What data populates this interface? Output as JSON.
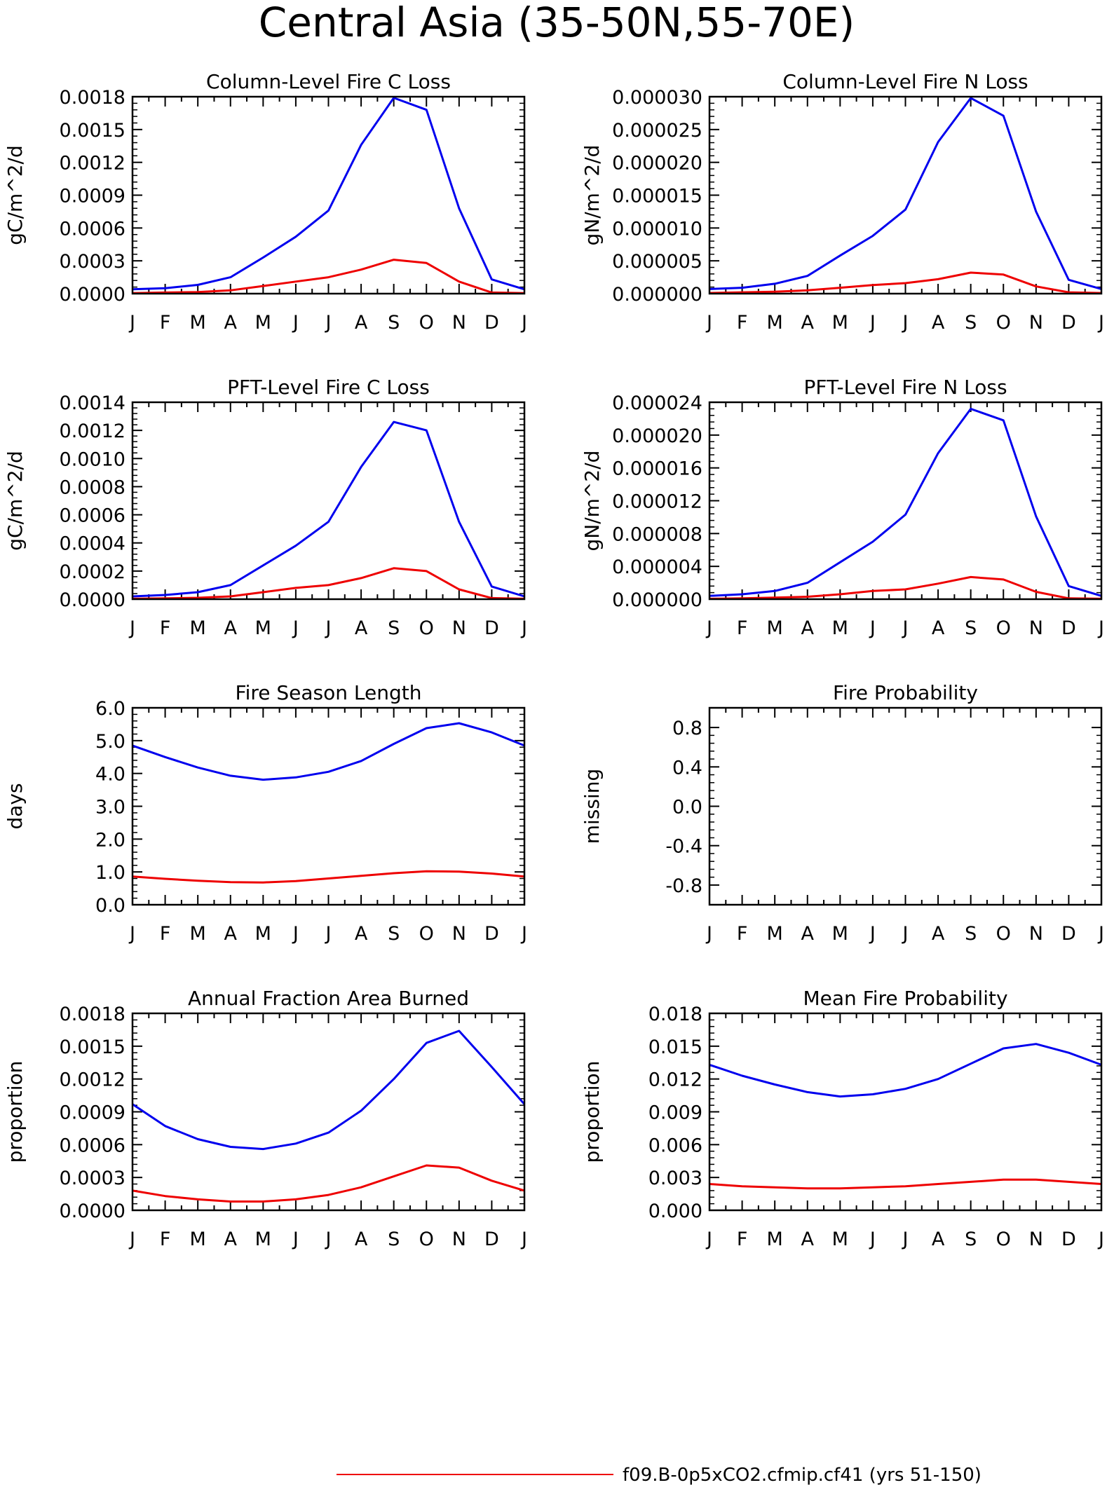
{
  "page_title": "Central Asia (35-50N,55-70E)",
  "colors": {
    "series_a": "#0000ee",
    "series_b": "#ee0000",
    "axis": "#000000"
  },
  "legend": {
    "label": "f09.B-0p5xCO2.cfmip.cf41 (yrs 51-150)",
    "color": "#ee0000"
  },
  "chart_data": [
    {
      "type": "line",
      "title": "Column-Level Fire C Loss",
      "ylabel": "gC/m^2/d",
      "categories": [
        "J",
        "F",
        "M",
        "A",
        "M",
        "J",
        "J",
        "A",
        "S",
        "O",
        "N",
        "D",
        "J"
      ],
      "ylim": [
        0,
        0.0018
      ],
      "yticks": [
        "0.0000",
        "0.0003",
        "0.0006",
        "0.0009",
        "0.0012",
        "0.0015",
        "0.0018"
      ],
      "series": [
        {
          "color": "#0000ee",
          "values": [
            4e-05,
            5e-05,
            8e-05,
            0.00015,
            0.00033,
            0.00052,
            0.00076,
            0.00136,
            0.00179,
            0.00168,
            0.00078,
            0.00013,
            4e-05
          ]
        },
        {
          "color": "#ee0000",
          "values": [
            5e-06,
            1e-05,
            1.5e-05,
            3e-05,
            7e-05,
            0.00011,
            0.00015,
            0.00022,
            0.00031,
            0.00028,
            0.00011,
            1e-05,
            5e-06
          ]
        }
      ]
    },
    {
      "type": "line",
      "title": "Column-Level Fire N Loss",
      "ylabel": "gN/m^2/d",
      "categories": [
        "J",
        "F",
        "M",
        "A",
        "M",
        "J",
        "J",
        "A",
        "S",
        "O",
        "N",
        "D",
        "J"
      ],
      "ylim": [
        0,
        3e-05
      ],
      "yticks": [
        "0.000000",
        "0.000005",
        "0.000010",
        "0.000015",
        "0.000020",
        "0.000025",
        "0.000030"
      ],
      "series": [
        {
          "color": "#0000ee",
          "values": [
            7e-07,
            9e-07,
            1.5e-06,
            2.7e-06,
            5.8e-06,
            8.8e-06,
            1.28e-05,
            2.31e-05,
            2.98e-05,
            2.71e-05,
            1.25e-05,
            2.1e-06,
            7e-07
          ]
        },
        {
          "color": "#ee0000",
          "values": [
            1e-07,
            2e-07,
            3e-07,
            5e-07,
            9e-07,
            1.3e-06,
            1.6e-06,
            2.2e-06,
            3.2e-06,
            2.9e-06,
            1.1e-06,
            2e-07,
            1e-07
          ]
        }
      ]
    },
    {
      "type": "line",
      "title": "PFT-Level Fire C Loss",
      "ylabel": "gC/m^2/d",
      "categories": [
        "J",
        "F",
        "M",
        "A",
        "M",
        "J",
        "J",
        "A",
        "S",
        "O",
        "N",
        "D",
        "J"
      ],
      "ylim": [
        0,
        0.0014
      ],
      "yticks": [
        "0.0000",
        "0.0002",
        "0.0004",
        "0.0006",
        "0.0008",
        "0.0010",
        "0.0012",
        "0.0014"
      ],
      "series": [
        {
          "color": "#0000ee",
          "values": [
            2e-05,
            3e-05,
            5e-05,
            0.0001,
            0.00024,
            0.00038,
            0.00055,
            0.00094,
            0.00126,
            0.0012,
            0.00055,
            9e-05,
            2e-05
          ]
        },
        {
          "color": "#ee0000",
          "values": [
            3e-06,
            6e-06,
            1e-05,
            2e-05,
            5e-05,
            8e-05,
            0.0001,
            0.00015,
            0.00022,
            0.0002,
            7e-05,
            8e-06,
            3e-06
          ]
        }
      ]
    },
    {
      "type": "line",
      "title": "PFT-Level Fire N Loss",
      "ylabel": "gN/m^2/d",
      "categories": [
        "J",
        "F",
        "M",
        "A",
        "M",
        "J",
        "J",
        "A",
        "S",
        "O",
        "N",
        "D",
        "J"
      ],
      "ylim": [
        0,
        2.4e-05
      ],
      "yticks": [
        "0.000000",
        "0.000004",
        "0.000008",
        "0.000012",
        "0.000016",
        "0.000020",
        "0.000024"
      ],
      "series": [
        {
          "color": "#0000ee",
          "values": [
            4e-07,
            6e-07,
            1e-06,
            2e-06,
            4.5e-06,
            7e-06,
            1.03e-05,
            1.78e-05,
            2.32e-05,
            2.18e-05,
            1.01e-05,
            1.6e-06,
            4e-07
          ]
        },
        {
          "color": "#ee0000",
          "values": [
            5e-08,
            1e-07,
            2e-07,
            3e-07,
            6e-07,
            1e-06,
            1.2e-06,
            1.9e-06,
            2.7e-06,
            2.4e-06,
            9e-07,
            1e-07,
            5e-08
          ]
        }
      ]
    },
    {
      "type": "line",
      "title": "Fire Season Length",
      "ylabel": "days",
      "categories": [
        "J",
        "F",
        "M",
        "A",
        "M",
        "J",
        "J",
        "A",
        "S",
        "O",
        "N",
        "D",
        "J"
      ],
      "ylim": [
        0,
        6
      ],
      "yticks": [
        "0.0",
        "1.0",
        "2.0",
        "3.0",
        "4.0",
        "5.0",
        "6.0"
      ],
      "series": [
        {
          "color": "#0000ee",
          "values": [
            4.85,
            4.5,
            4.18,
            3.93,
            3.81,
            3.88,
            4.05,
            4.38,
            4.9,
            5.38,
            5.53,
            5.25,
            4.85
          ]
        },
        {
          "color": "#ee0000",
          "values": [
            0.86,
            0.79,
            0.73,
            0.69,
            0.68,
            0.72,
            0.8,
            0.88,
            0.96,
            1.02,
            1.01,
            0.95,
            0.86
          ]
        }
      ]
    },
    {
      "type": "line",
      "title": "Fire Probability",
      "ylabel": "missing",
      "categories": [
        "J",
        "F",
        "M",
        "A",
        "M",
        "J",
        "J",
        "A",
        "S",
        "O",
        "N",
        "D",
        "J"
      ],
      "ylim": [
        -1,
        1
      ],
      "yticks": [
        "-0.8",
        "-0.4",
        "0.0",
        "0.4",
        "0.8"
      ],
      "ytick_values": [
        -0.8,
        -0.4,
        0,
        0.4,
        0.8
      ],
      "series": []
    },
    {
      "type": "line",
      "title": "Annual Fraction Area Burned",
      "ylabel": "proportion",
      "categories": [
        "J",
        "F",
        "M",
        "A",
        "M",
        "J",
        "J",
        "A",
        "S",
        "O",
        "N",
        "D",
        "J"
      ],
      "ylim": [
        0,
        0.0018
      ],
      "yticks": [
        "0.0000",
        "0.0003",
        "0.0006",
        "0.0009",
        "0.0012",
        "0.0015",
        "0.0018"
      ],
      "series": [
        {
          "color": "#0000ee",
          "values": [
            0.00097,
            0.00077,
            0.00065,
            0.00058,
            0.00056,
            0.00061,
            0.00071,
            0.00091,
            0.0012,
            0.00153,
            0.00164,
            0.00131,
            0.00097
          ]
        },
        {
          "color": "#ee0000",
          "values": [
            0.00018,
            0.00013,
            0.0001,
            8e-05,
            8e-05,
            0.0001,
            0.00014,
            0.00021,
            0.00031,
            0.00041,
            0.00039,
            0.00027,
            0.00018
          ]
        }
      ]
    },
    {
      "type": "line",
      "title": "Mean Fire Probability",
      "ylabel": "proportion",
      "categories": [
        "J",
        "F",
        "M",
        "A",
        "M",
        "J",
        "J",
        "A",
        "S",
        "O",
        "N",
        "D",
        "J"
      ],
      "ylim": [
        0,
        0.018
      ],
      "yticks": [
        "0.000",
        "0.003",
        "0.006",
        "0.009",
        "0.012",
        "0.015",
        "0.018"
      ],
      "series": [
        {
          "color": "#0000ee",
          "values": [
            0.0133,
            0.0123,
            0.0115,
            0.0108,
            0.0104,
            0.0106,
            0.0111,
            0.012,
            0.0134,
            0.0148,
            0.0152,
            0.0144,
            0.0133
          ]
        },
        {
          "color": "#ee0000",
          "values": [
            0.0024,
            0.0022,
            0.0021,
            0.002,
            0.002,
            0.0021,
            0.0022,
            0.0024,
            0.0026,
            0.0028,
            0.0028,
            0.0026,
            0.0024
          ]
        }
      ]
    }
  ]
}
